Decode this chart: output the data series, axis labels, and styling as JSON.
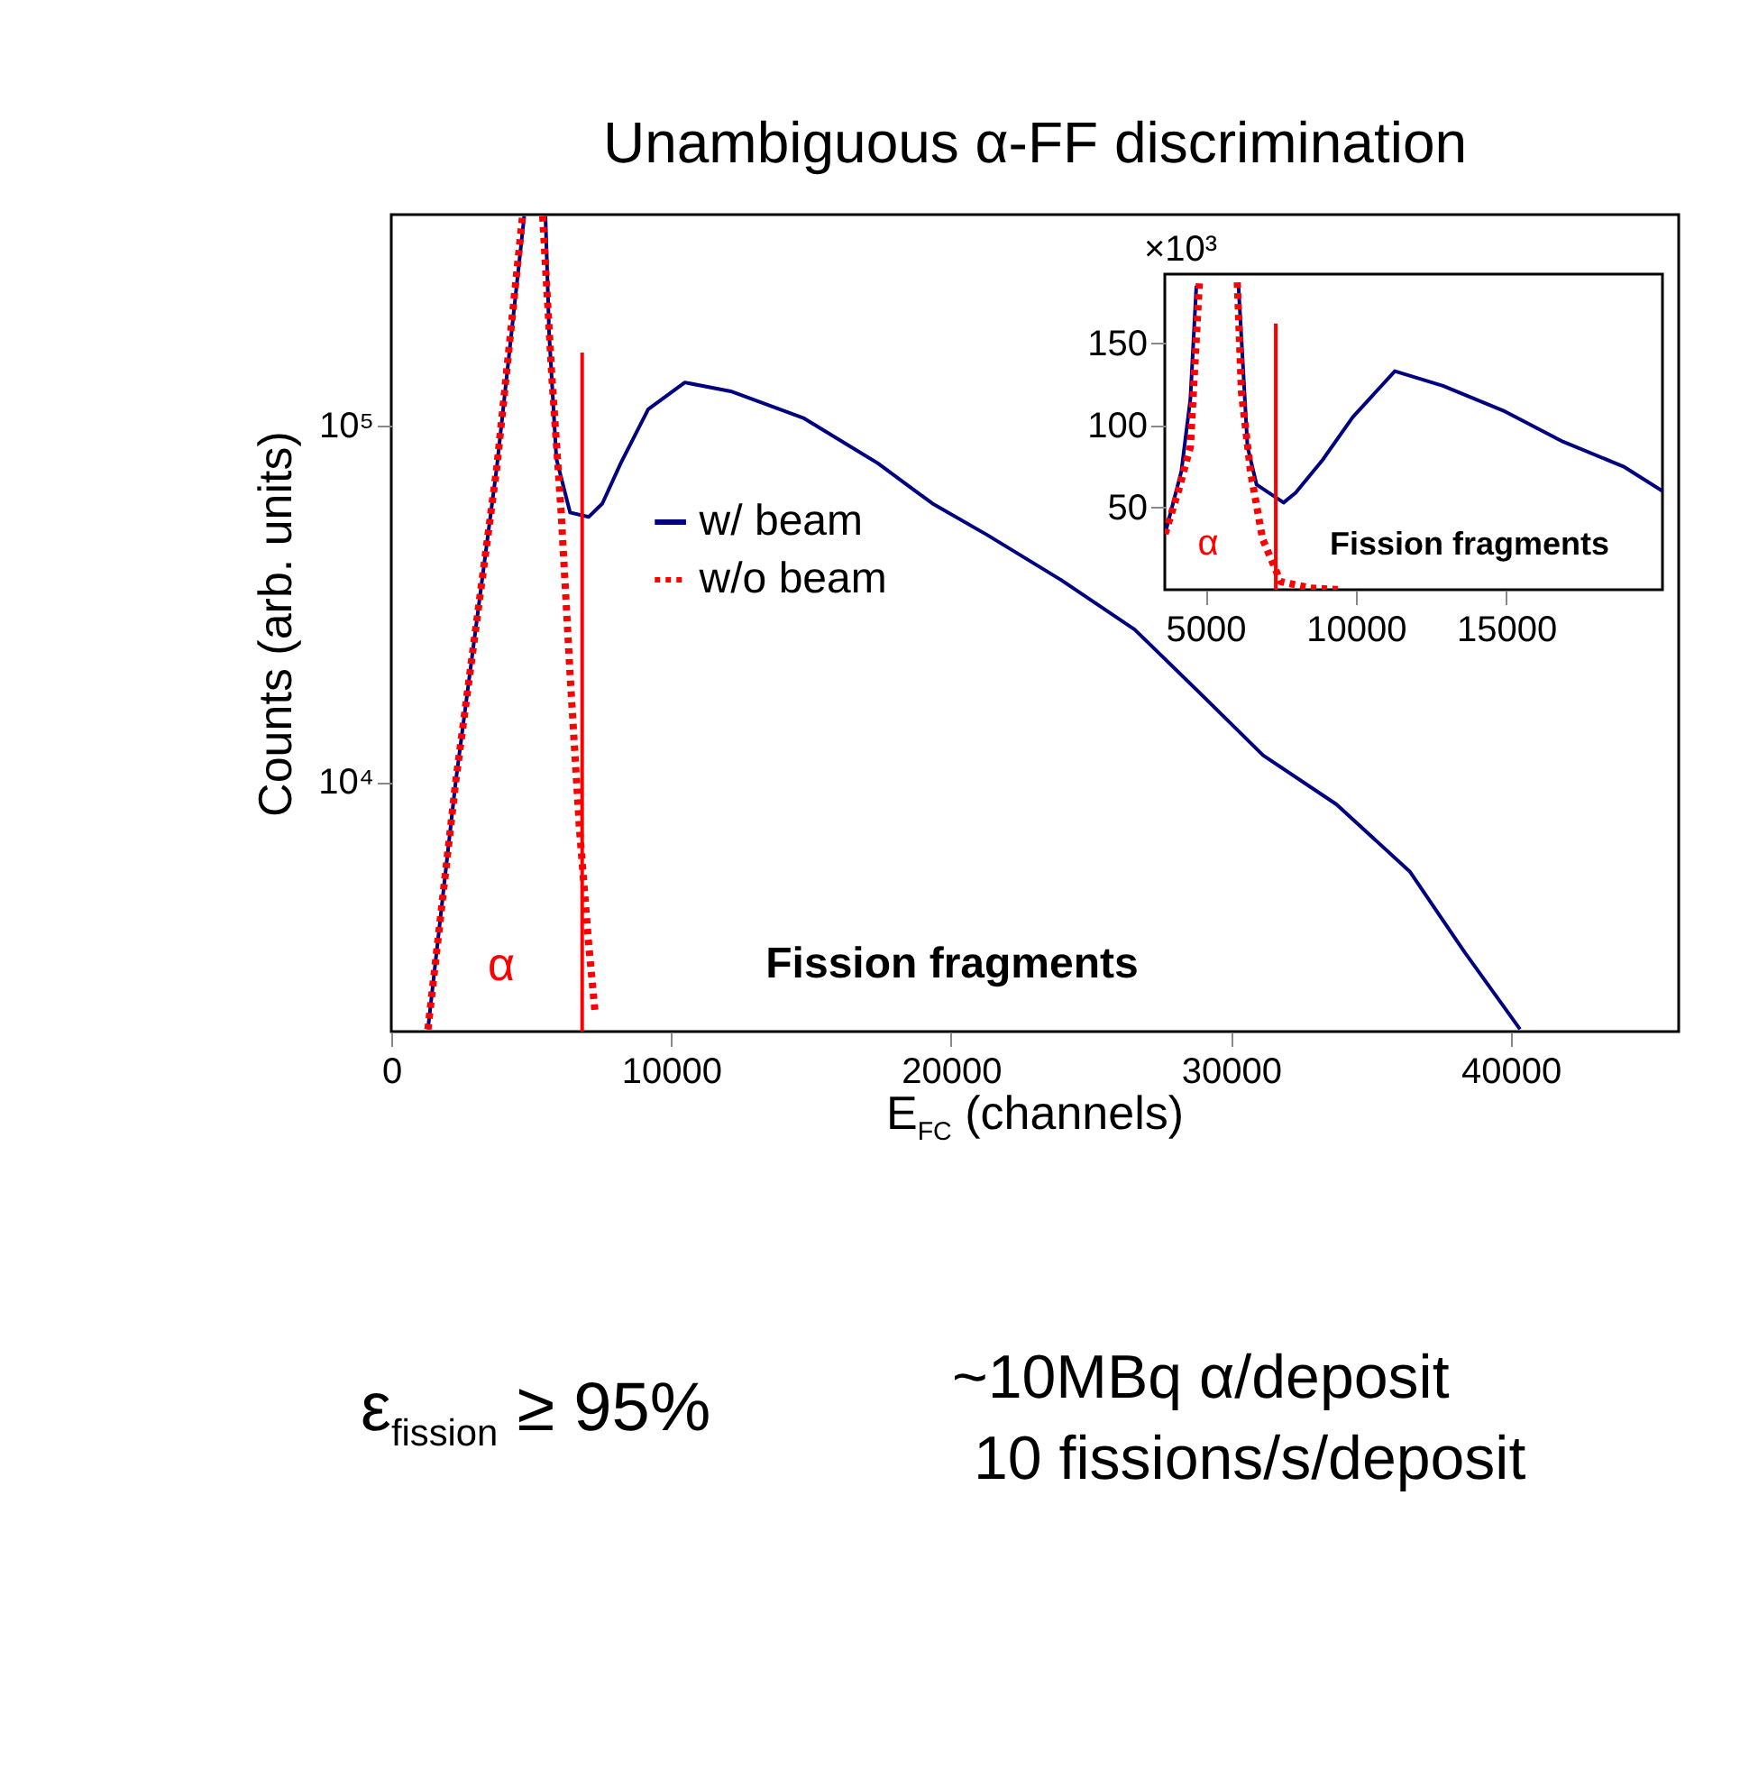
{
  "chart_data": [
    {
      "type": "line",
      "title": "Unambiguous α-FF discrimination",
      "xlabel": "E$_{FC}$ (channels)",
      "ylabel": "Counts (arb. units)",
      "log": true,
      "legend": "top left",
      "xlim": [
        0,
        46000
      ],
      "xticks": [
        0,
        10000,
        20000,
        30000,
        40000
      ],
      "ylim": [
        2000,
        390000
      ],
      "yticks": [
        {
          "value": 10000,
          "label": "10⁴"
        },
        {
          "value": 100000,
          "label": "10⁵"
        }
      ],
      "series": [
        {
          "name": "w/ beam",
          "color": "#000080",
          "line_style": "solid",
          "x": [
            1310,
            2300,
            3770,
            4750,
            5100,
            5510,
            5640,
            5900,
            6390,
            7050,
            7540,
            8200,
            9180,
            10490,
            12130,
            14750,
            17380,
            19340,
            21300,
            23930,
            26560,
            29180,
            31150,
            33770,
            36390,
            38360,
            40330
          ],
          "values": [
            2030,
            10000,
            76200,
            386000,
            null,
            386000,
            181600,
            80700,
            57000,
            55400,
            60400,
            78400,
            111000,
            132000,
            124700,
            104700,
            78400,
            60400,
            49300,
            36900,
            26800,
            16900,
            11900,
            8670,
            5620,
            3330,
            2030
          ]
        },
        {
          "name": "w/o beam",
          "color": "#ff0000",
          "line_style": "dotted",
          "x": [
            1310,
            2300,
            3770,
            4690,
            5050,
            5410,
            5740,
            6070,
            6390,
            6720,
            7050,
            7280
          ],
          "values": [
            2030,
            10000,
            76200,
            386000,
            null,
            386000,
            136000,
            57000,
            20000,
            7480,
            3540,
            2270
          ]
        },
        {
          "color": "#ff0000",
          "line_style": "solid",
          "x": [
            6820,
            6820
          ],
          "values": [
            2000,
            160000
          ]
        }
      ],
      "annotations": [
        "α",
        "Fission fragments",
        "ε$_{fission}$ ≥ 95%",
        "~10MBq α/deposit",
        "10 fissions/s/deposit"
      ]
    },
    {
      "type": "line",
      "ylabel": "×10³",
      "xlim": [
        3650,
        20200
      ],
      "xticks": [
        5000,
        10000,
        15000
      ],
      "ylim": [
        0,
        192
      ],
      "yticks": [
        50,
        100,
        150
      ],
      "series": [
        {
          "color": "#000080",
          "line_style": "solid",
          "x": [
            3660,
            4200,
            4500,
            4700,
            5400,
            6100,
            6400,
            6700,
            7600,
            8000,
            8900,
            9900,
            11300,
            12900,
            14900,
            16900,
            18900,
            20200
          ],
          "values": [
            34,
            72,
            116,
            185,
            null,
            185,
            87,
            64,
            53,
            59,
            79,
            105,
            133,
            124,
            109,
            90,
            75,
            60
          ]
        },
        {
          "color": "#ff0000",
          "line_style": "dotted",
          "x": [
            3660,
            4100,
            4500,
            4800,
            5400,
            6060,
            6200,
            6500,
            6900,
            7500,
            8500,
            9500
          ],
          "values": [
            34,
            60,
            87,
            187,
            null,
            187,
            120,
            72,
            31,
            5,
            1,
            0
          ]
        },
        {
          "color": "#ff0000",
          "line_style": "solid",
          "x": [
            7340,
            7340
          ],
          "values": [
            0,
            162
          ]
        }
      ],
      "annotations": [
        "α",
        "Fission fragments"
      ]
    }
  ]
}
